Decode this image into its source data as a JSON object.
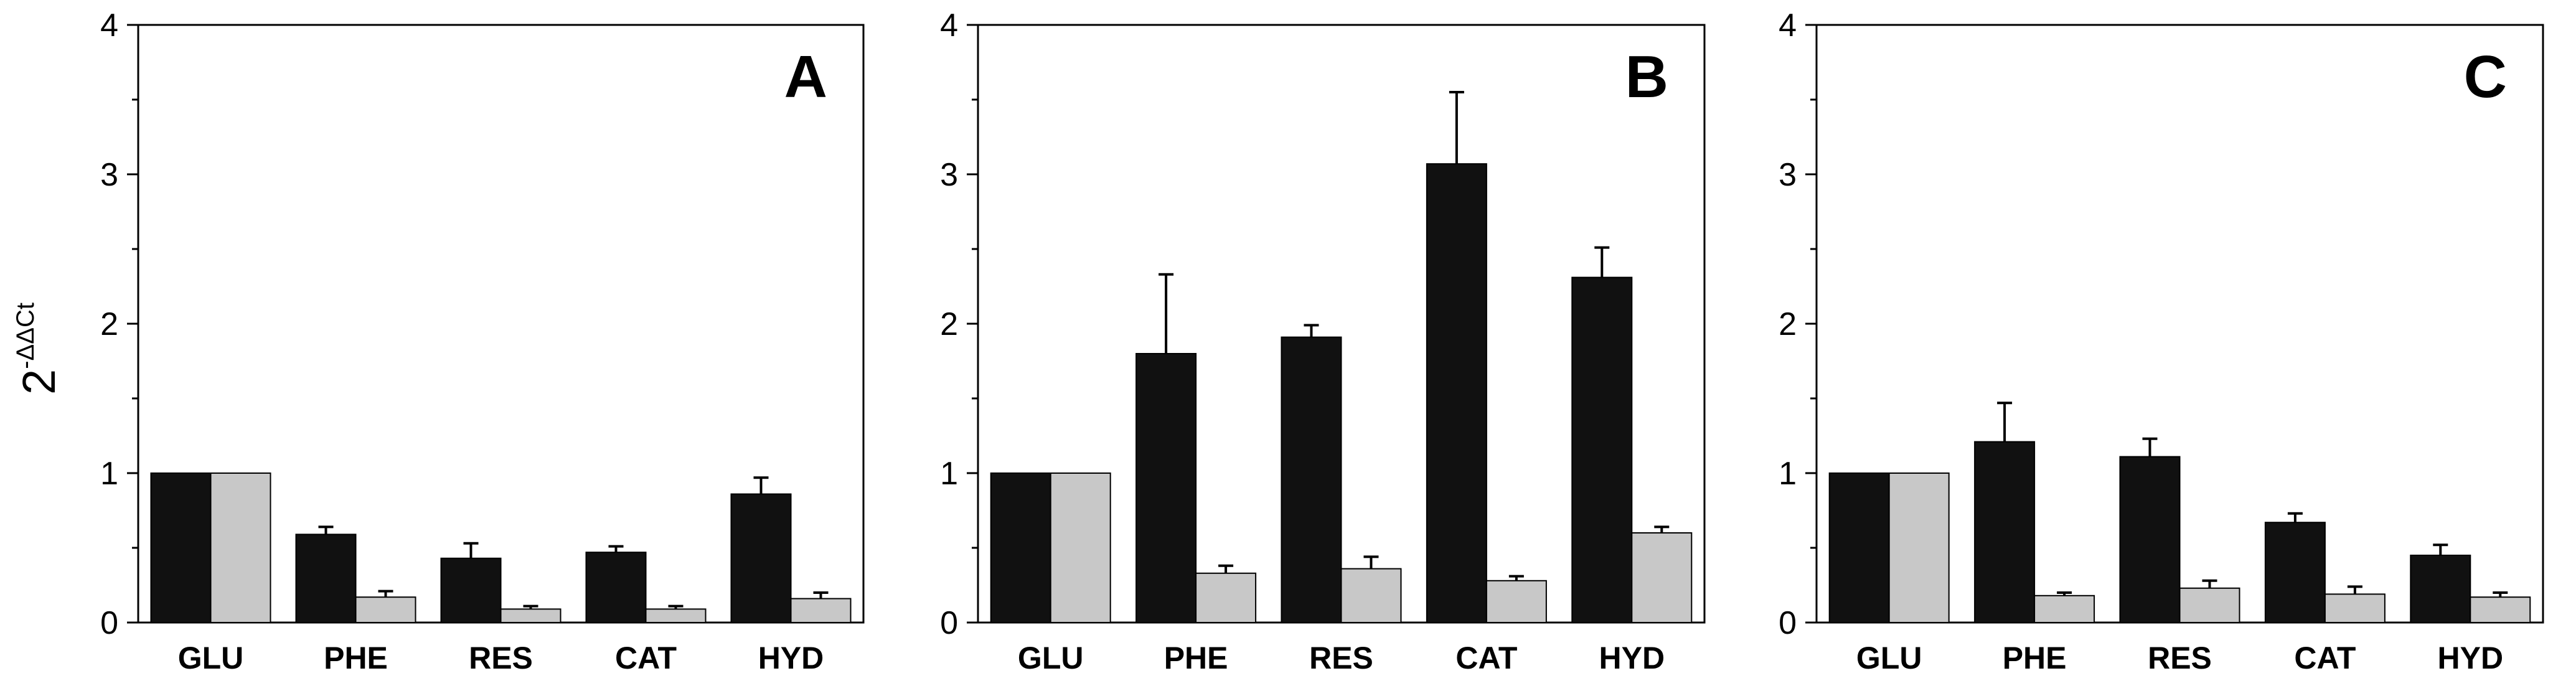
{
  "ylabel": {
    "base": "2",
    "exponent": "-ΔΔCt"
  },
  "colors": {
    "series_dark": "#111111",
    "series_light": "#c8c8c8",
    "axis": "#000000"
  },
  "chart_data": [
    {
      "type": "bar",
      "title": "A",
      "categories": [
        "GLU",
        "PHE",
        "RES",
        "CAT",
        "HYD"
      ],
      "ylim": [
        0,
        4
      ],
      "yticks": [
        0,
        1,
        2,
        3,
        4
      ],
      "xlabel": "",
      "ylabel": "2-ΔΔCt",
      "series": [
        {
          "name": "dark",
          "values": [
            1.0,
            0.59,
            0.43,
            0.47,
            0.86
          ],
          "errors": [
            0,
            0.05,
            0.1,
            0.04,
            0.11
          ]
        },
        {
          "name": "light",
          "values": [
            1.0,
            0.17,
            0.09,
            0.09,
            0.16
          ],
          "errors": [
            0,
            0.04,
            0.02,
            0.02,
            0.04
          ]
        }
      ]
    },
    {
      "type": "bar",
      "title": "B",
      "categories": [
        "GLU",
        "PHE",
        "RES",
        "CAT",
        "HYD"
      ],
      "ylim": [
        0,
        4
      ],
      "yticks": [
        0,
        1,
        2,
        3,
        4
      ],
      "xlabel": "",
      "ylabel": "",
      "series": [
        {
          "name": "dark",
          "values": [
            1.0,
            1.8,
            1.91,
            3.07,
            2.31
          ],
          "errors": [
            0,
            0.53,
            0.08,
            0.48,
            0.2
          ]
        },
        {
          "name": "light",
          "values": [
            1.0,
            0.33,
            0.36,
            0.28,
            0.6
          ],
          "errors": [
            0,
            0.05,
            0.08,
            0.03,
            0.04
          ]
        }
      ]
    },
    {
      "type": "bar",
      "title": "C",
      "categories": [
        "GLU",
        "PHE",
        "RES",
        "CAT",
        "HYD"
      ],
      "ylim": [
        0,
        4
      ],
      "yticks": [
        0,
        1,
        2,
        3,
        4
      ],
      "xlabel": "",
      "ylabel": "",
      "series": [
        {
          "name": "dark",
          "values": [
            1.0,
            1.21,
            1.11,
            0.67,
            0.45
          ],
          "errors": [
            0,
            0.26,
            0.12,
            0.06,
            0.07
          ]
        },
        {
          "name": "light",
          "values": [
            1.0,
            0.18,
            0.23,
            0.19,
            0.17
          ],
          "errors": [
            0,
            0.02,
            0.05,
            0.05,
            0.03
          ]
        }
      ]
    }
  ]
}
